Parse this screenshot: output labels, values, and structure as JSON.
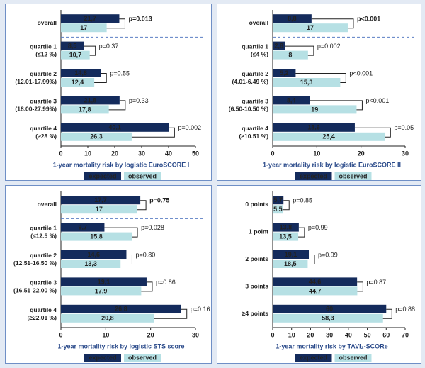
{
  "chart_data": [
    {
      "type": "bar",
      "orientation": "horizontal",
      "categories": [
        [
          "overall"
        ],
        [
          "quartile 1",
          "(≤12 %)"
        ],
        [
          "quartile 2",
          "(12.01-17.99%)"
        ],
        [
          "quartile 3",
          "(18.00-27.99%)"
        ],
        [
          "quartile 4",
          "(≥28 %)"
        ]
      ],
      "series": [
        {
          "name": "expected",
          "color": "#142b5c",
          "values": [
            21.7,
            8.5,
            14.8,
            21.8,
            40.1
          ],
          "value_labels": [
            "21,7",
            "8,5",
            "14,8",
            "21,8",
            "40,1"
          ]
        },
        {
          "name": "observed",
          "color": "#b6e0e4",
          "values": [
            17,
            10.7,
            12.4,
            17.8,
            26.3
          ],
          "value_labels": [
            "17",
            "10,7",
            "12,4",
            "17,8",
            "26,3"
          ]
        }
      ],
      "p_values": [
        "p=0.013",
        "p=0.37",
        "p=0.55",
        "p=0.33",
        "p=0.002"
      ],
      "highlight_first_p": true,
      "separator": true,
      "xlim": [
        0,
        50
      ],
      "xticks": [
        0,
        10,
        20,
        30,
        40,
        50
      ],
      "xlabel": "1-year mortality risk by logistic EuroSCORE I"
    },
    {
      "type": "bar",
      "orientation": "horizontal",
      "categories": [
        [
          "overall"
        ],
        [
          "quartile 1",
          "(≤4 %)"
        ],
        [
          "quartile 2",
          "(4.01-6.49 %)"
        ],
        [
          "quartile 3",
          "(6.50-10.50 %)"
        ],
        [
          "quartile 4",
          "(≥10.51 %)"
        ]
      ],
      "series": [
        {
          "name": "expected",
          "color": "#142b5c",
          "values": [
            8.8,
            2.8,
            5.2,
            8.4,
            18.6
          ],
          "value_labels": [
            "8,8",
            "2,8",
            "5,2",
            "8,4",
            "18,6"
          ]
        },
        {
          "name": "observed",
          "color": "#b6e0e4",
          "values": [
            17,
            8,
            15.3,
            19,
            25.4
          ],
          "value_labels": [
            "17",
            "8",
            "15,3",
            "19",
            "25,4"
          ]
        }
      ],
      "p_values": [
        "p<0.001",
        "p=0.002",
        "p<0.001",
        "p<0.001",
        "p=0.05"
      ],
      "highlight_first_p": true,
      "separator": true,
      "xlim": [
        0,
        30
      ],
      "xticks": [
        0,
        10,
        20,
        30
      ],
      "xlabel": "1-year mortality risk by logistic EuroSCORE II"
    },
    {
      "type": "bar",
      "orientation": "horizontal",
      "categories": [
        [
          "overall"
        ],
        [
          "quartile 1",
          "(≤12.5 %)"
        ],
        [
          "quartile 2",
          "(12.51-16.50 %)"
        ],
        [
          "quartile 3",
          "(16.51-22.00 %)"
        ],
        [
          "quartile 4",
          "(≥22.01 %)"
        ]
      ],
      "series": [
        {
          "name": "expected",
          "color": "#142b5c",
          "values": [
            17.7,
            9.7,
            14.6,
            19.1,
            26.8
          ],
          "value_labels": [
            "17,7",
            "9,7",
            "14,6",
            "19,1",
            "26,8"
          ]
        },
        {
          "name": "observed",
          "color": "#b6e0e4",
          "values": [
            17,
            15.8,
            13.3,
            17.9,
            20.8
          ],
          "value_labels": [
            "17",
            "15,8",
            "13,3",
            "17,9",
            "20,8"
          ]
        }
      ],
      "p_values": [
        "p=0.75",
        "p=0.028",
        "p=0.80",
        "p=0.86",
        "p=0.16"
      ],
      "highlight_first_p": true,
      "separator": true,
      "xlim": [
        0,
        30
      ],
      "xticks": [
        0,
        10,
        20,
        30
      ],
      "xlabel": "1-year mortality risk by logistic STS score"
    },
    {
      "type": "bar",
      "orientation": "horizontal",
      "categories": [
        [
          "0 points"
        ],
        [
          "1 point"
        ],
        [
          "2 points"
        ],
        [
          "3 points"
        ],
        [
          "≥4 points"
        ]
      ],
      "series": [
        {
          "name": "expected",
          "color": "#142b5c",
          "values": [
            5.7,
            13.8,
            19.1,
            44.6,
            60
          ],
          "value_labels": [
            "5,7",
            "13,8",
            "19,1",
            "44,6",
            "60"
          ]
        },
        {
          "name": "observed",
          "color": "#b6e0e4",
          "values": [
            5.5,
            13.5,
            18.5,
            44.7,
            58.3
          ],
          "value_labels": [
            "5,5",
            "13,5",
            "18,5",
            "44,7",
            "58,3"
          ]
        }
      ],
      "p_values": [
        "p=0.85",
        "p=0.99",
        "p=0.99",
        "p=0.87",
        "p=0.88"
      ],
      "highlight_first_p": false,
      "separator": false,
      "xlim": [
        0,
        70
      ],
      "xticks": [
        0,
        10,
        20,
        30,
        40,
        50,
        60,
        70
      ],
      "xlabel": "1-year mortality risk by TAVI₂-SCORe"
    }
  ]
}
